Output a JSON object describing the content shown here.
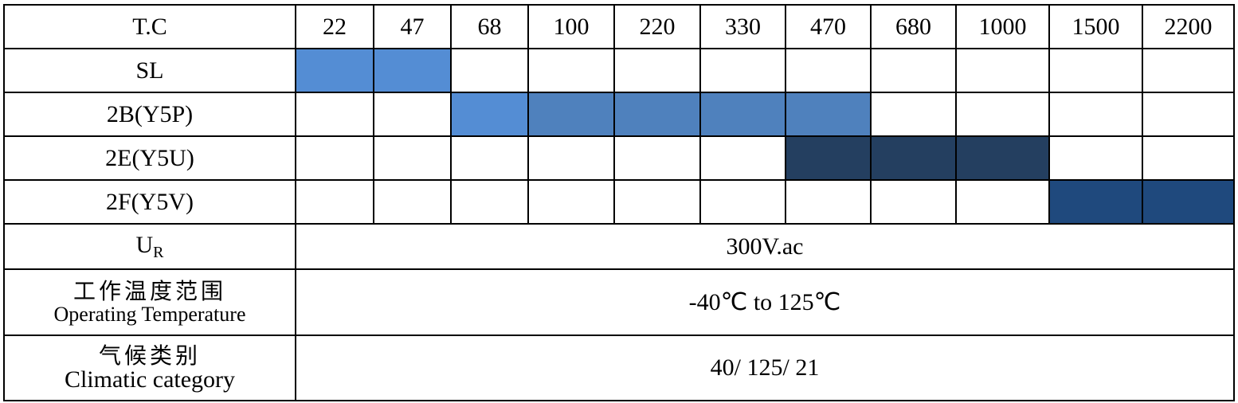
{
  "header": {
    "label": "T.C",
    "values": [
      "22",
      "47",
      "68",
      "100",
      "220",
      "330",
      "470",
      "680",
      "1000",
      "1500",
      "2200"
    ]
  },
  "rows": [
    {
      "label": "SL",
      "fills": [
        "#548dd4",
        "#548dd4",
        null,
        null,
        null,
        null,
        null,
        null,
        null,
        null,
        null
      ]
    },
    {
      "label": "2B(Y5P)",
      "fills": [
        null,
        null,
        "#548dd4",
        "#4f81bd",
        "#4f81bd",
        "#4f81bd",
        "#4f81bd",
        null,
        null,
        null,
        null
      ]
    },
    {
      "label": "2E(Y5U)",
      "fills": [
        null,
        null,
        null,
        null,
        null,
        null,
        "#243f60",
        "#243f60",
        "#243f60",
        null,
        null
      ]
    },
    {
      "label": "2F(Y5V)",
      "fills": [
        null,
        null,
        null,
        null,
        null,
        null,
        null,
        null,
        null,
        "#1f497d",
        "#1f497d"
      ]
    }
  ],
  "rated_voltage": {
    "label_main": "U",
    "label_sub": "R",
    "value": "300V.ac"
  },
  "operating_temperature": {
    "label_zh": "工作温度范围",
    "label_en": "Operating Temperature",
    "value": "-40℃ to 125℃"
  },
  "climatic_category": {
    "label_zh": "气候类别",
    "label_en": "Climatic category",
    "value": "40/ 125/ 21"
  }
}
